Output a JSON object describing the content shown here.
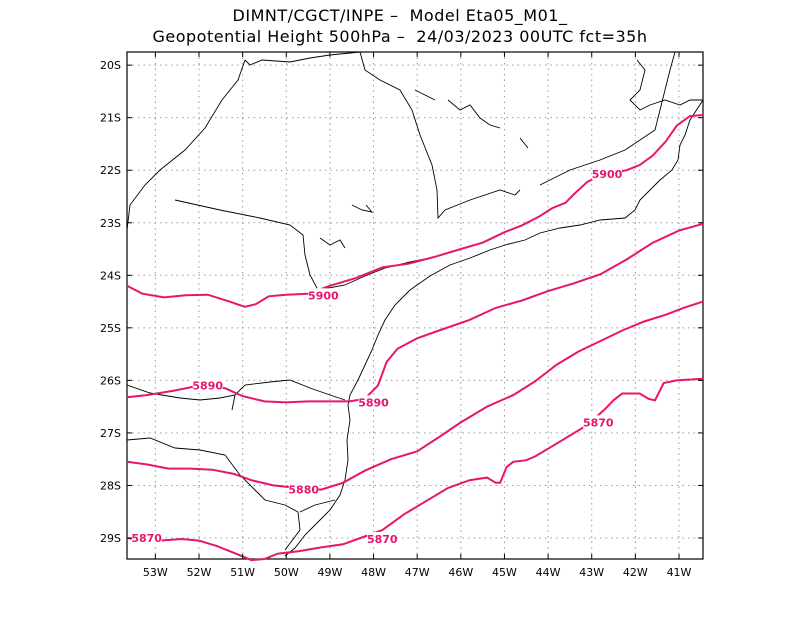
{
  "header": {
    "line1": "DIMNT/CGCT/INPE –  Model Eta05_M01_",
    "line2": "Geopotential Height 500hPa –  24/03/2023 00UTC fct=35h"
  },
  "axes": {
    "lon_range": [
      -53.65,
      -40.45
    ],
    "lat_range": [
      -29.4,
      -19.75
    ],
    "x_ticks": [
      {
        "lon": -53,
        "label": "53W"
      },
      {
        "lon": -52,
        "label": "52W"
      },
      {
        "lon": -51,
        "label": "51W"
      },
      {
        "lon": -50,
        "label": "50W"
      },
      {
        "lon": -49,
        "label": "49W"
      },
      {
        "lon": -48,
        "label": "48W"
      },
      {
        "lon": -47,
        "label": "47W"
      },
      {
        "lon": -46,
        "label": "46W"
      },
      {
        "lon": -45,
        "label": "45W"
      },
      {
        "lon": -44,
        "label": "44W"
      },
      {
        "lon": -43,
        "label": "43W"
      },
      {
        "lon": -42,
        "label": "42W"
      },
      {
        "lon": -41,
        "label": "41W"
      }
    ],
    "y_ticks": [
      {
        "lat": -20,
        "label": "20S"
      },
      {
        "lat": -21,
        "label": "21S"
      },
      {
        "lat": -22,
        "label": "22S"
      },
      {
        "lat": -23,
        "label": "23S"
      },
      {
        "lat": -24,
        "label": "24S"
      },
      {
        "lat": -25,
        "label": "25S"
      },
      {
        "lat": -26,
        "label": "26S"
      },
      {
        "lat": -27,
        "label": "27S"
      },
      {
        "lat": -28,
        "label": "28S"
      },
      {
        "lat": -29,
        "label": "29S"
      }
    ]
  },
  "contours": {
    "color": "#e8146e",
    "lines": [
      {
        "value": 5900,
        "points": [
          [
            -53.65,
            -24.2
          ],
          [
            -53.3,
            -24.35
          ],
          [
            -52.8,
            -24.42
          ],
          [
            -52.3,
            -24.38
          ],
          [
            -51.8,
            -24.37
          ],
          [
            -51.3,
            -24.5
          ],
          [
            -50.95,
            -24.6
          ],
          [
            -50.7,
            -24.55
          ],
          [
            -50.4,
            -24.4
          ],
          [
            -50.0,
            -24.37
          ],
          [
            -49.5,
            -24.35
          ],
          [
            -49.0,
            -24.2
          ],
          [
            -48.4,
            -24.05
          ],
          [
            -47.8,
            -23.85
          ],
          [
            -47.2,
            -23.78
          ],
          [
            -46.6,
            -23.65
          ],
          [
            -46.0,
            -23.5
          ],
          [
            -45.5,
            -23.38
          ],
          [
            -45.0,
            -23.18
          ],
          [
            -44.6,
            -23.05
          ],
          [
            -44.2,
            -22.88
          ],
          [
            -43.9,
            -22.72
          ],
          [
            -43.6,
            -22.62
          ],
          [
            -43.4,
            -22.45
          ],
          [
            -43.1,
            -22.22
          ],
          [
            -42.8,
            -22.1
          ],
          [
            -42.2,
            -22.0
          ],
          [
            -41.9,
            -21.9
          ],
          [
            -41.6,
            -21.72
          ],
          [
            -41.3,
            -21.45
          ],
          [
            -41.05,
            -21.15
          ],
          [
            -40.75,
            -20.97
          ],
          [
            -40.45,
            -20.95
          ]
        ],
        "labels": [
          {
            "text": "5900",
            "lon": -49.15,
            "lat": -24.38
          },
          {
            "text": "5900",
            "lon": -42.65,
            "lat": -22.07
          }
        ]
      },
      {
        "value": 5890,
        "points": [
          [
            -53.65,
            -26.32
          ],
          [
            -53.2,
            -26.28
          ],
          [
            -52.6,
            -26.2
          ],
          [
            -52.0,
            -26.1
          ],
          [
            -51.4,
            -26.15
          ],
          [
            -51.0,
            -26.3
          ],
          [
            -50.5,
            -26.4
          ],
          [
            -50.0,
            -26.42
          ],
          [
            -49.5,
            -26.4
          ],
          [
            -49.0,
            -26.4
          ],
          [
            -48.55,
            -26.4
          ],
          [
            -48.2,
            -26.35
          ],
          [
            -47.9,
            -26.1
          ],
          [
            -47.7,
            -25.65
          ],
          [
            -47.45,
            -25.4
          ],
          [
            -47.0,
            -25.2
          ],
          [
            -46.5,
            -25.05
          ],
          [
            -45.8,
            -24.85
          ],
          [
            -45.2,
            -24.62
          ],
          [
            -44.6,
            -24.48
          ],
          [
            -44.0,
            -24.3
          ],
          [
            -43.4,
            -24.15
          ],
          [
            -42.8,
            -23.98
          ],
          [
            -42.2,
            -23.7
          ],
          [
            -41.6,
            -23.38
          ],
          [
            -41.0,
            -23.15
          ],
          [
            -40.45,
            -23.02
          ]
        ],
        "labels": [
          {
            "text": "5890",
            "lon": -51.8,
            "lat": -26.1
          },
          {
            "text": "5890",
            "lon": -48.0,
            "lat": -26.42
          }
        ]
      },
      {
        "value": 5880,
        "points": [
          [
            -53.65,
            -27.55
          ],
          [
            -53.2,
            -27.6
          ],
          [
            -52.7,
            -27.68
          ],
          [
            -52.2,
            -27.68
          ],
          [
            -51.7,
            -27.7
          ],
          [
            -51.2,
            -27.78
          ],
          [
            -50.8,
            -27.9
          ],
          [
            -50.3,
            -28.0
          ],
          [
            -49.7,
            -28.05
          ],
          [
            -49.2,
            -28.08
          ],
          [
            -48.7,
            -27.95
          ],
          [
            -48.2,
            -27.72
          ],
          [
            -47.6,
            -27.5
          ],
          [
            -47.0,
            -27.35
          ],
          [
            -46.5,
            -27.08
          ],
          [
            -46.0,
            -26.8
          ],
          [
            -45.4,
            -26.5
          ],
          [
            -44.8,
            -26.28
          ],
          [
            -44.3,
            -26.02
          ],
          [
            -43.8,
            -25.7
          ],
          [
            -43.3,
            -25.45
          ],
          [
            -42.8,
            -25.25
          ],
          [
            -42.3,
            -25.05
          ],
          [
            -41.8,
            -24.88
          ],
          [
            -41.3,
            -24.75
          ],
          [
            -40.9,
            -24.62
          ],
          [
            -40.45,
            -24.5
          ]
        ],
        "labels": [
          {
            "text": "5880",
            "lon": -49.6,
            "lat": -28.08
          }
        ]
      },
      {
        "value": 5870,
        "points": [
          [
            -53.65,
            -29.0
          ],
          [
            -53.3,
            -29.05
          ],
          [
            -52.9,
            -29.05
          ],
          [
            -52.4,
            -29.02
          ],
          [
            -52.0,
            -29.05
          ],
          [
            -51.6,
            -29.15
          ],
          [
            -51.3,
            -29.25
          ],
          [
            -51.0,
            -29.35
          ],
          [
            -50.8,
            -29.42
          ],
          [
            -50.5,
            -29.4
          ],
          [
            -50.2,
            -29.3
          ],
          [
            -49.7,
            -29.25
          ],
          [
            -49.2,
            -29.18
          ],
          [
            -48.7,
            -29.12
          ],
          [
            -48.3,
            -29.0
          ],
          [
            -47.8,
            -28.85
          ],
          [
            -47.3,
            -28.55
          ],
          [
            -46.8,
            -28.3
          ],
          [
            -46.3,
            -28.05
          ],
          [
            -45.8,
            -27.9
          ],
          [
            -45.4,
            -27.85
          ],
          [
            -45.2,
            -27.95
          ],
          [
            -45.1,
            -27.95
          ],
          [
            -44.95,
            -27.65
          ],
          [
            -44.8,
            -27.55
          ],
          [
            -44.5,
            -27.52
          ],
          [
            -44.3,
            -27.45
          ],
          [
            -44.0,
            -27.3
          ],
          [
            -43.7,
            -27.15
          ],
          [
            -43.4,
            -27.0
          ],
          [
            -43.1,
            -26.85
          ],
          [
            -42.9,
            -26.7
          ],
          [
            -42.7,
            -26.55
          ],
          [
            -42.5,
            -26.38
          ],
          [
            -42.3,
            -26.25
          ],
          [
            -42.1,
            -26.25
          ],
          [
            -41.9,
            -26.25
          ],
          [
            -41.7,
            -26.35
          ],
          [
            -41.55,
            -26.38
          ],
          [
            -41.35,
            -26.05
          ],
          [
            -41.05,
            -26.0
          ],
          [
            -40.45,
            -25.97
          ]
        ],
        "labels": [
          {
            "text": "5870",
            "lon": -53.2,
            "lat": -29.0
          },
          {
            "text": "5870",
            "lon": -47.8,
            "lat": -29.02
          },
          {
            "text": "5870",
            "lon": -42.85,
            "lat": -26.8
          }
        ]
      }
    ]
  }
}
